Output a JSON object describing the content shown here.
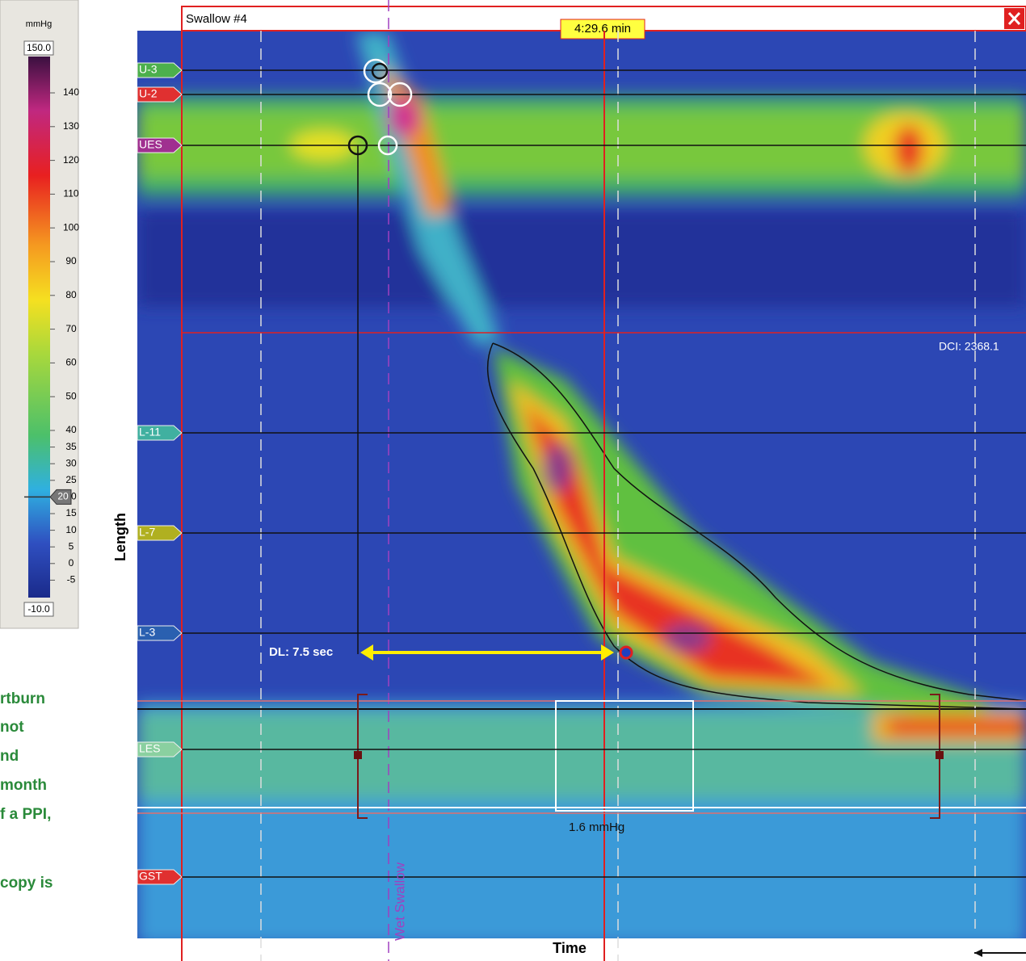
{
  "colorbar": {
    "unit": "mmHg",
    "max_label": "150.0",
    "min_label": "-10.0",
    "ticks": [
      140,
      130,
      120,
      110,
      100,
      90,
      80,
      70,
      60,
      50,
      40,
      35,
      30,
      25,
      20,
      15,
      10,
      5,
      0,
      -5
    ],
    "threshold": 20
  },
  "side_text": [
    "rtburn",
    "not",
    "nd",
    "month",
    "f a PPI,",
    "copy is"
  ],
  "plot": {
    "title": "Swallow #4",
    "time": "4:29.6 min",
    "sensors": [
      "U-3",
      "U-2",
      "UES",
      "L-11",
      "L-7",
      "L-3",
      "LES",
      "GST"
    ],
    "dci": "DCI: 2368.1",
    "dl": "DL: 7.5 sec",
    "les_pressure": "1.6 mmHg",
    "event": "Wet Swallow",
    "y_axis": "Length",
    "x_axis": "Time"
  }
}
